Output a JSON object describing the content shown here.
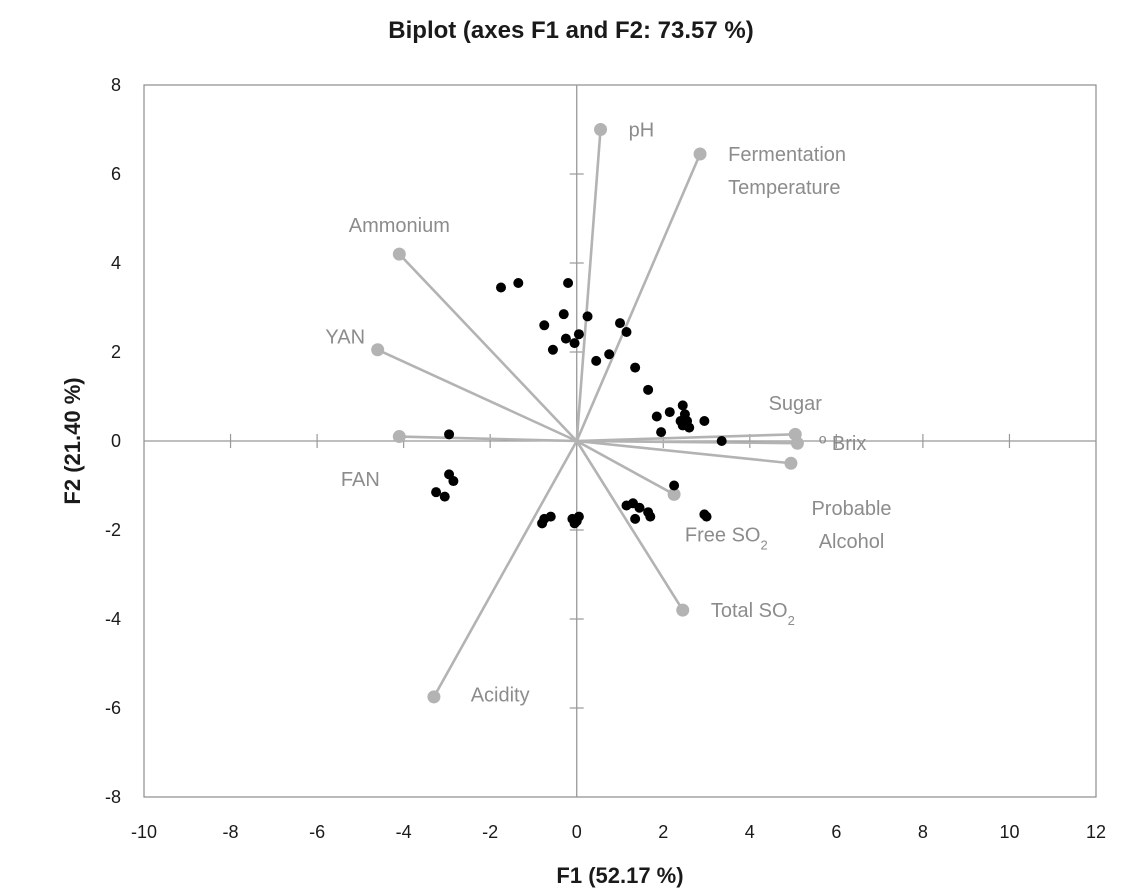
{
  "chart_data": {
    "type": "scatter",
    "title": "Biplot (axes F1 and F2: 73.57 %)",
    "xlabel": "F1 (52.17 %)",
    "ylabel": "F2 (21.40 %)",
    "xlim": [
      -10,
      12
    ],
    "ylim": [
      -8,
      8
    ],
    "x_ticks": [
      -10,
      -8,
      -6,
      -4,
      -2,
      0,
      2,
      4,
      6,
      8,
      10,
      12
    ],
    "y_ticks": [
      -8,
      -6,
      -4,
      -2,
      0,
      2,
      4,
      6,
      8
    ],
    "x_tick_labels": [
      "-10",
      "-8",
      "-6",
      "-4",
      "-2",
      "0",
      "2",
      "4",
      "6",
      "8",
      "10",
      "12"
    ],
    "y_tick_labels": [
      "-8",
      "-6",
      "-4",
      "-2",
      "0",
      "2",
      "4",
      "6",
      "8"
    ],
    "grid": false,
    "legend": "none",
    "colors": {
      "observations": "#000000",
      "variables": "#b3b3b3",
      "variable_labels": "#8c8c8c",
      "axes": "#999999",
      "frame": "#8c8c8c"
    },
    "observations": [
      {
        "x": -1.75,
        "y": 3.45
      },
      {
        "x": -1.35,
        "y": 3.55
      },
      {
        "x": -0.2,
        "y": 3.55
      },
      {
        "x": -0.3,
        "y": 2.85
      },
      {
        "x": 0.25,
        "y": 2.8
      },
      {
        "x": -0.75,
        "y": 2.6
      },
      {
        "x": 1.0,
        "y": 2.65
      },
      {
        "x": 1.15,
        "y": 2.45
      },
      {
        "x": 0.05,
        "y": 2.4
      },
      {
        "x": -0.25,
        "y": 2.3
      },
      {
        "x": -0.05,
        "y": 2.2
      },
      {
        "x": -0.55,
        "y": 2.05
      },
      {
        "x": 0.75,
        "y": 1.95
      },
      {
        "x": 0.45,
        "y": 1.8
      },
      {
        "x": 1.35,
        "y": 1.65
      },
      {
        "x": 1.65,
        "y": 1.15
      },
      {
        "x": 2.45,
        "y": 0.8
      },
      {
        "x": 2.15,
        "y": 0.65
      },
      {
        "x": 2.5,
        "y": 0.6
      },
      {
        "x": 1.85,
        "y": 0.55
      },
      {
        "x": 2.4,
        "y": 0.45
      },
      {
        "x": 2.55,
        "y": 0.45
      },
      {
        "x": 2.95,
        "y": 0.45
      },
      {
        "x": 2.45,
        "y": 0.35
      },
      {
        "x": 2.6,
        "y": 0.3
      },
      {
        "x": 1.95,
        "y": 0.2
      },
      {
        "x": 3.35,
        "y": 0.0
      },
      {
        "x": -2.95,
        "y": 0.15
      },
      {
        "x": -2.95,
        "y": -0.75
      },
      {
        "x": -2.85,
        "y": -0.9
      },
      {
        "x": -3.25,
        "y": -1.15
      },
      {
        "x": -3.05,
        "y": -1.25
      },
      {
        "x": 2.25,
        "y": -1.0
      },
      {
        "x": 1.15,
        "y": -1.45
      },
      {
        "x": 1.3,
        "y": -1.4
      },
      {
        "x": 1.45,
        "y": -1.5
      },
      {
        "x": 1.65,
        "y": -1.6
      },
      {
        "x": 1.35,
        "y": -1.75
      },
      {
        "x": 1.7,
        "y": -1.7
      },
      {
        "x": 2.95,
        "y": -1.65
      },
      {
        "x": 3.0,
        "y": -1.7
      },
      {
        "x": -0.75,
        "y": -1.75
      },
      {
        "x": -0.6,
        "y": -1.7
      },
      {
        "x": -0.8,
        "y": -1.85
      },
      {
        "x": -0.1,
        "y": -1.75
      },
      {
        "x": 0.0,
        "y": -1.8
      },
      {
        "x": -0.05,
        "y": -1.85
      },
      {
        "x": 0.05,
        "y": -1.7
      }
    ],
    "variables": [
      {
        "name": "pH",
        "x": 0.55,
        "y": 7.0,
        "label_lines": [
          "pH"
        ],
        "label_dx": 0.65,
        "label_dy": 0.0,
        "anchor": "start"
      },
      {
        "name": "Fermentation Temperature",
        "x": 2.85,
        "y": 6.45,
        "label_lines": [
          "Fermentation",
          "Temperature"
        ],
        "label_dx": 0.65,
        "label_dy": 0.0,
        "anchor": "start"
      },
      {
        "name": "Ammonium",
        "x": -4.1,
        "y": 4.2,
        "label_lines": [
          "Ammonium"
        ],
        "label_dx": 0.0,
        "label_dy": 0.65,
        "anchor": "middle"
      },
      {
        "name": "YAN",
        "x": -4.6,
        "y": 2.05,
        "label_lines": [
          "YAN"
        ],
        "label_dx": -0.75,
        "label_dy": 0.3,
        "anchor": "middle"
      },
      {
        "name": "FAN",
        "x": -4.1,
        "y": 0.1,
        "label_lines": [
          "FAN"
        ],
        "label_dx": -0.9,
        "label_dy": -0.95,
        "anchor": "middle"
      },
      {
        "name": "Sugar",
        "x": 5.05,
        "y": 0.15,
        "label_lines": [
          "Sugar"
        ],
        "label_dx": 0.0,
        "label_dy": 0.7,
        "anchor": "middle"
      },
      {
        "name": "º Brix",
        "x": 5.1,
        "y": -0.05,
        "label_lines": [
          "º Brix"
        ],
        "label_dx": 0.5,
        "label_dy": 0.0,
        "anchor": "start"
      },
      {
        "name": "Probable Alcohol",
        "x": 4.95,
        "y": -0.5,
        "label_lines": [
          "Probable",
          "Alcohol"
        ],
        "label_dx": 1.4,
        "label_dy": -1.0,
        "anchor": "middle"
      },
      {
        "name": "Free SO2",
        "x": 2.25,
        "y": -1.2,
        "label_lines": [
          "Free SO2"
        ],
        "label_dx": 0.25,
        "label_dy": -0.9,
        "anchor": "start"
      },
      {
        "name": "Total SO2",
        "x": 2.45,
        "y": -3.8,
        "label_lines": [
          "Total SO2"
        ],
        "label_dx": 0.65,
        "label_dy": 0.0,
        "anchor": "start"
      },
      {
        "name": "Acidity",
        "x": -3.3,
        "y": -5.75,
        "label_lines": [
          "Acidity"
        ],
        "label_dx": 0.85,
        "label_dy": 0.05,
        "anchor": "start"
      }
    ]
  }
}
